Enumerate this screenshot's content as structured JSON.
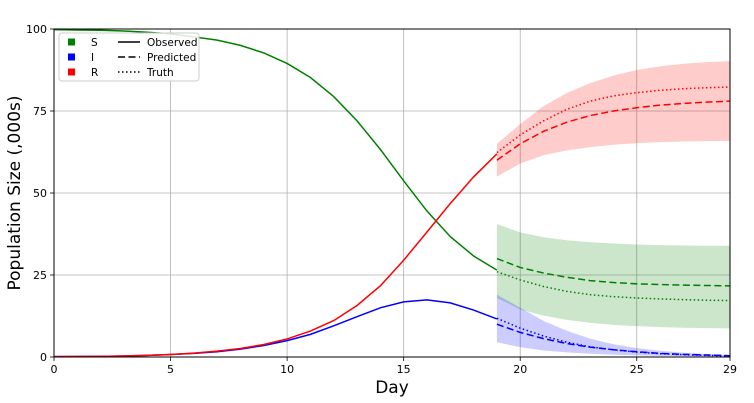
{
  "chart_data": {
    "type": "line",
    "xlabel": "Day",
    "ylabel": "Population Size (,000s)",
    "xlim": [
      0,
      29
    ],
    "ylim": [
      0,
      100
    ],
    "xticks": [
      0,
      5,
      10,
      15,
      20,
      25,
      29
    ],
    "yticks": [
      0,
      25,
      50,
      75,
      100
    ],
    "grid": true,
    "legend_position": "top-left",
    "legend": {
      "compartments": [
        {
          "label": "S",
          "color": "#008000"
        },
        {
          "label": "I",
          "color": "#0000ff"
        },
        {
          "label": "R",
          "color": "#ff0000"
        }
      ],
      "styles": [
        {
          "label": "Observed",
          "dash": "solid"
        },
        {
          "label": "Predicted",
          "dash": "dashed"
        },
        {
          "label": "Truth",
          "dash": "dotted"
        }
      ]
    },
    "series": [
      {
        "compartment": "S",
        "kind": "observed",
        "color": "#008000",
        "x": [
          0,
          1,
          2,
          3,
          4,
          5,
          6,
          7,
          8,
          9,
          10,
          11,
          12,
          13,
          14,
          15,
          16,
          17,
          18,
          19
        ],
        "y": [
          99.8,
          99.7,
          99.6,
          99.4,
          99.0,
          98.5,
          97.6,
          96.6,
          95.0,
          92.7,
          89.5,
          85.2,
          79.4,
          72.0,
          63.3,
          53.7,
          44.5,
          36.7,
          30.8,
          26.5
        ]
      },
      {
        "compartment": "I",
        "kind": "observed",
        "color": "#0000ff",
        "x": [
          0,
          1,
          2,
          3,
          4,
          5,
          6,
          7,
          8,
          9,
          10,
          11,
          12,
          13,
          14,
          15,
          16,
          17,
          18,
          19
        ],
        "y": [
          0.1,
          0.15,
          0.2,
          0.3,
          0.5,
          0.75,
          1.1,
          1.6,
          2.4,
          3.5,
          5.0,
          6.9,
          9.5,
          12.3,
          15.0,
          16.8,
          17.4,
          16.5,
          14.3,
          11.6
        ]
      },
      {
        "compartment": "R",
        "kind": "observed",
        "color": "#ff0000",
        "x": [
          0,
          1,
          2,
          3,
          4,
          5,
          6,
          7,
          8,
          9,
          10,
          11,
          12,
          13,
          14,
          15,
          16,
          17,
          18,
          19
        ],
        "y": [
          0.1,
          0.15,
          0.2,
          0.3,
          0.5,
          0.75,
          1.2,
          1.8,
          2.6,
          3.8,
          5.5,
          7.9,
          11.1,
          15.7,
          21.7,
          29.5,
          38.1,
          46.8,
          54.9,
          61.9
        ]
      },
      {
        "compartment": "S",
        "kind": "predicted",
        "color": "#008000",
        "x": [
          19,
          20,
          21,
          22,
          23,
          24,
          25,
          26,
          27,
          28,
          29
        ],
        "y": [
          30.0,
          27.3,
          25.6,
          24.3,
          23.3,
          22.7,
          22.3,
          22.1,
          21.9,
          21.8,
          21.7
        ]
      },
      {
        "compartment": "I",
        "kind": "predicted",
        "color": "#0000ff",
        "x": [
          19,
          20,
          21,
          22,
          23,
          24,
          25,
          26,
          27,
          28,
          29
        ],
        "y": [
          10.0,
          7.5,
          5.6,
          4.1,
          3.0,
          2.2,
          1.6,
          1.1,
          0.8,
          0.6,
          0.4
        ]
      },
      {
        "compartment": "R",
        "kind": "predicted",
        "color": "#ff0000",
        "x": [
          19,
          20,
          21,
          22,
          23,
          24,
          25,
          26,
          27,
          28,
          29
        ],
        "y": [
          60.0,
          65.0,
          68.8,
          71.6,
          73.6,
          75.0,
          76.0,
          76.8,
          77.3,
          77.7,
          78.0
        ]
      },
      {
        "compartment": "S",
        "kind": "truth",
        "color": "#008000",
        "x": [
          19,
          20,
          21,
          22,
          23,
          24,
          25,
          26,
          27,
          28,
          29
        ],
        "y": [
          26.0,
          23.5,
          21.5,
          20.0,
          19.0,
          18.4,
          18.0,
          17.7,
          17.5,
          17.3,
          17.2
        ]
      },
      {
        "compartment": "I",
        "kind": "truth",
        "color": "#0000ff",
        "x": [
          19,
          20,
          21,
          22,
          23,
          24,
          25,
          26,
          27,
          28,
          29
        ],
        "y": [
          11.8,
          8.8,
          6.4,
          4.5,
          3.1,
          2.2,
          1.5,
          1.0,
          0.7,
          0.5,
          0.3
        ]
      },
      {
        "compartment": "R",
        "kind": "truth",
        "color": "#ff0000",
        "x": [
          19,
          20,
          21,
          22,
          23,
          24,
          25,
          26,
          27,
          28,
          29
        ],
        "y": [
          62.3,
          67.7,
          72.0,
          75.5,
          78.0,
          79.6,
          80.6,
          81.3,
          81.8,
          82.1,
          82.3
        ]
      }
    ],
    "bands": [
      {
        "compartment": "R",
        "color": "#ff0000",
        "opacity": 0.2,
        "x": [
          19,
          20,
          21,
          22,
          23,
          24,
          25,
          26,
          27,
          28,
          29
        ],
        "lower": [
          55.0,
          59.0,
          61.5,
          63.0,
          64.0,
          64.7,
          65.2,
          65.5,
          65.7,
          65.8,
          65.9
        ],
        "upper": [
          65.0,
          71.0,
          76.5,
          80.5,
          83.5,
          85.8,
          87.5,
          88.6,
          89.4,
          89.9,
          90.2
        ]
      },
      {
        "compartment": "S",
        "color": "#008000",
        "opacity": 0.2,
        "x": [
          19,
          20,
          21,
          22,
          23,
          24,
          25,
          26,
          27,
          28,
          29
        ],
        "lower": [
          18.0,
          14.5,
          12.6,
          11.3,
          10.4,
          9.8,
          9.4,
          9.1,
          8.9,
          8.8,
          8.7
        ],
        "upper": [
          40.5,
          38.0,
          36.5,
          35.6,
          35.0,
          34.6,
          34.3,
          34.1,
          34.0,
          33.9,
          33.9
        ]
      },
      {
        "compartment": "I",
        "color": "#0000ff",
        "opacity": 0.2,
        "x": [
          19,
          20,
          21,
          22,
          23,
          24,
          25,
          26,
          27,
          28,
          29
        ],
        "lower": [
          4.5,
          3.0,
          2.0,
          1.4,
          1.0,
          0.7,
          0.5,
          0.35,
          0.25,
          0.2,
          0.15
        ],
        "upper": [
          19.0,
          15.0,
          11.0,
          8.0,
          5.6,
          3.9,
          2.7,
          1.9,
          1.3,
          0.9,
          0.6
        ]
      }
    ]
  }
}
